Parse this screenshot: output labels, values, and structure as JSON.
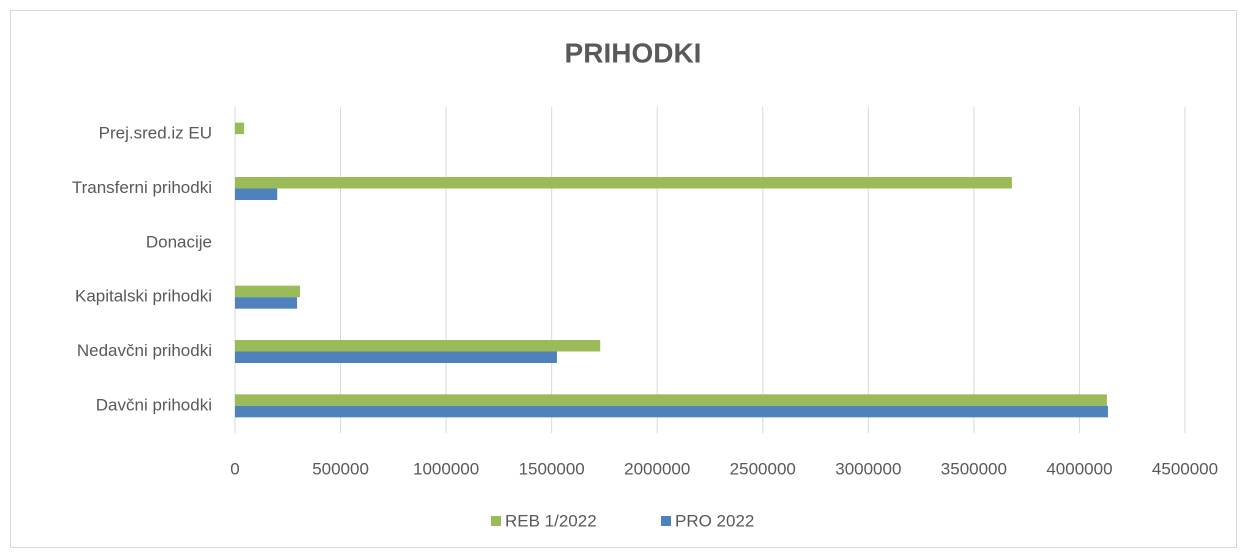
{
  "chart_data": {
    "type": "hbar",
    "title": "PRIHODKI",
    "categories": [
      "Davčni prihodki",
      "Nedavčni prihodki",
      "Kapitalski prihodki",
      "Donacije",
      "Transferni prihodki",
      "Prej.sred.iz EU"
    ],
    "series": [
      {
        "name": "REB 1/2022",
        "color": "#9bbb59",
        "values": [
          4130000,
          1730000,
          308000,
          0,
          3680000,
          43000
        ]
      },
      {
        "name": "PRO 2022",
        "color": "#4f81bd",
        "values": [
          4135000,
          1525000,
          294000,
          0,
          200000,
          0
        ]
      }
    ],
    "xlim": [
      0,
      4500000
    ],
    "xticks": [
      0,
      500000,
      1000000,
      1500000,
      2000000,
      2500000,
      3000000,
      3500000,
      4000000,
      4500000
    ],
    "grid": true,
    "legend": "bottom"
  }
}
